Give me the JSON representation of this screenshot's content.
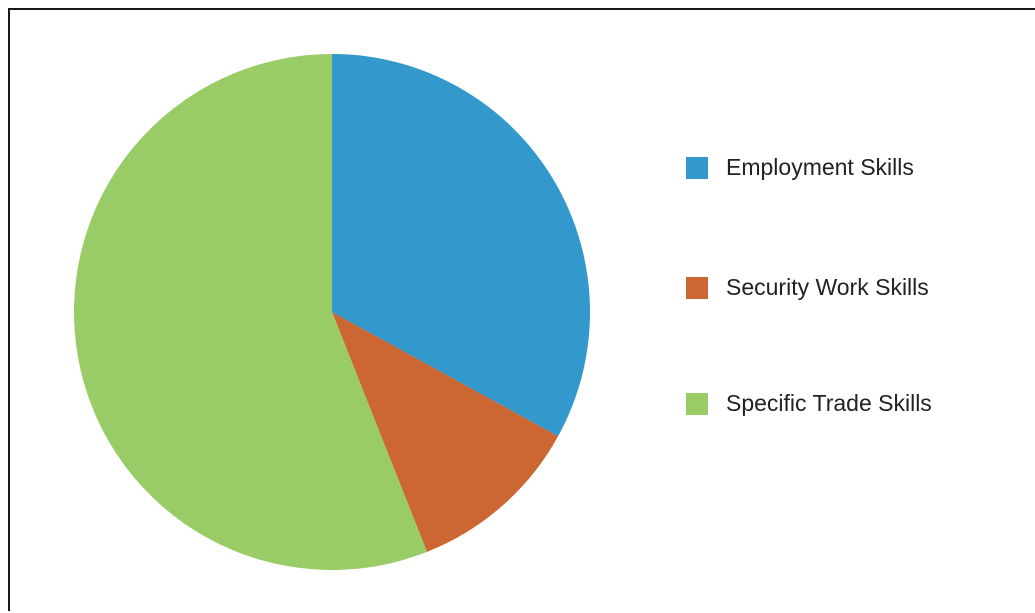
{
  "chart_data": {
    "type": "pie",
    "title": "",
    "legend_position": "right",
    "slices": [
      {
        "label": "Employment Skills",
        "value": 33,
        "color": "#3399cc"
      },
      {
        "label": "Security Work Skills",
        "value": 11,
        "color": "#cc6633"
      },
      {
        "label": "Specific Trade Skills",
        "value": 56,
        "color": "#99cc66"
      }
    ]
  }
}
